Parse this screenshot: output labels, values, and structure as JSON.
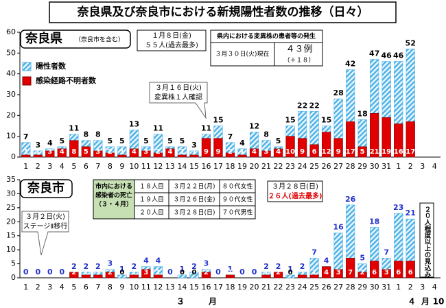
{
  "title": "奈良県及び奈良市における新規陽性者数の推移（日々）",
  "chart_data": [
    {
      "type": "bar",
      "title": "奈良県",
      "subtitle": "（奈良市を含む）",
      "categories": [
        "1",
        "2",
        "3",
        "4",
        "5",
        "6",
        "7",
        "8",
        "9",
        "10",
        "11",
        "12",
        "13",
        "14",
        "15",
        "16",
        "17",
        "18",
        "19",
        "20",
        "21",
        "22",
        "23",
        "24",
        "25",
        "26",
        "27",
        "28",
        "29",
        "30",
        "31",
        "1",
        "2",
        "3",
        "4"
      ],
      "series": [
        {
          "name": "陽性者数",
          "color": "#4fb3e8",
          "label_color": "#000000",
          "values": [
            7,
            3,
            4,
            5,
            11,
            8,
            8,
            5,
            5,
            13,
            5,
            11,
            5,
            5,
            3,
            11,
            15,
            7,
            4,
            12,
            8,
            5,
            15,
            22,
            22,
            15,
            28,
            42,
            18,
            47,
            46,
            46,
            52,
            null,
            null
          ]
        },
        {
          "name": "感染経路不明者数",
          "color": "#e00000",
          "label_color": "#ffffff",
          "values": [
            1,
            1,
            3,
            4,
            8,
            5,
            3,
            2,
            1,
            4,
            3,
            2,
            4,
            1,
            1,
            9,
            9,
            2,
            1,
            4,
            3,
            4,
            10,
            9,
            6,
            12,
            9,
            17,
            5,
            21,
            19,
            16,
            17,
            null,
            null
          ]
        }
      ],
      "ylim": [
        0,
        60
      ],
      "yticks": [
        0,
        10,
        20,
        30,
        40,
        50,
        60
      ],
      "grid": false,
      "overlap": true,
      "legend": "top-left",
      "record_box": [
        "１月８日(金)",
        "５５人(過去最多)"
      ],
      "variant_table": {
        "header": "県内における変異株の患者等の発生",
        "date": "３月３０日(火)現在",
        "count": "４３例",
        "change": "（＋１８）"
      },
      "callout": [
        "３月１６日(火)",
        "変異株１人確認"
      ]
    },
    {
      "type": "bar",
      "title": "奈良市",
      "categories": [
        "1",
        "2",
        "3",
        "4",
        "5",
        "6",
        "7",
        "8",
        "9",
        "10",
        "11",
        "12",
        "13",
        "14",
        "15",
        "16",
        "17",
        "18",
        "19",
        "20",
        "21",
        "22",
        "23",
        "24",
        "25",
        "26",
        "27",
        "28",
        "29",
        "30",
        "31",
        "1",
        "2",
        "3",
        "4"
      ],
      "series": [
        {
          "color": "#4fb3e8",
          "label_color": "#2233cc",
          "values": [
            0,
            0,
            0,
            0,
            2,
            2,
            2,
            3,
            1,
            2,
            4,
            4,
            0,
            1,
            2,
            3,
            0,
            1,
            0,
            0,
            2,
            2,
            1,
            2,
            7,
            4,
            16,
            26,
            5,
            18,
            7,
            23,
            21,
            null,
            null
          ]
        },
        {
          "color": "#e00000",
          "label_color": "#ffffff",
          "values": [
            null,
            null,
            null,
            null,
            2,
            1,
            1,
            2,
            0,
            1,
            3,
            1,
            null,
            0,
            0,
            2,
            null,
            1,
            null,
            null,
            1,
            2,
            0,
            1,
            1,
            4,
            3,
            7,
            2,
            6,
            3,
            6,
            6,
            null,
            null
          ]
        }
      ],
      "ylim": [
        0,
        35
      ],
      "yticks": [
        0,
        5,
        10,
        15,
        20,
        25,
        30,
        35
      ],
      "grid": false,
      "overlap": true,
      "callout": [
        "３月２日(火)",
        "ステージⅡ移行"
      ],
      "death_table": {
        "title": [
          "市内における",
          "感染者の死亡",
          "（３・４月）"
        ],
        "rows": [
          [
            "１８人目",
            "３月２２日(月)",
            "８０代女性"
          ],
          [
            "１９人目",
            "３月２６日(金)",
            "９０代女性"
          ],
          [
            "２０人目",
            "３月２８日(日)",
            "７０代男性"
          ]
        ]
      },
      "record_box": [
        "３月２８日(日)",
        "２６人(過去最多)"
      ],
      "forecast": "２０人程度以上の見込み",
      "months": [
        "３",
        "月",
        "４",
        "月",
        "10"
      ]
    }
  ]
}
